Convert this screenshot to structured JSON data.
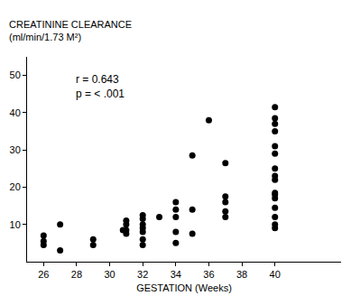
{
  "chart_data": {
    "type": "scatter",
    "y_label": [
      "CREATININE CLEARANCE",
      "(ml/min/1.73 M²)"
    ],
    "x_label": "GESTATION (Weeks)",
    "annotations": [
      "r = 0.643",
      "p = < .001"
    ],
    "color": "#000000",
    "marker": "circle",
    "grid": false,
    "x": [
      27,
      27,
      26,
      26,
      26,
      29,
      29,
      31,
      31,
      31,
      31,
      30.8,
      32,
      32,
      32,
      32,
      32,
      32,
      32,
      33,
      34,
      34,
      34,
      34,
      34,
      35,
      35,
      35,
      36,
      37,
      37,
      37,
      37,
      37,
      40,
      40,
      40,
      40,
      40,
      40,
      40,
      40,
      40,
      40,
      40,
      40,
      40,
      40,
      40,
      40
    ],
    "values": [
      10,
      3,
      7,
      5.5,
      4.5,
      6,
      4.5,
      11,
      10,
      8.5,
      7.5,
      8.5,
      12.5,
      11.5,
      10,
      9,
      8,
      6,
      4.5,
      12,
      16,
      14,
      12,
      8,
      5,
      28.5,
      14,
      7.5,
      38,
      26.5,
      17.5,
      16,
      13.5,
      12,
      41.5,
      38.5,
      37,
      35,
      31,
      29,
      25,
      23,
      22,
      18.5,
      18,
      17,
      14.5,
      12,
      10,
      9
    ],
    "xlim": [
      25,
      44
    ],
    "xticks": [
      26,
      28,
      30,
      32,
      34,
      36,
      38,
      40
    ],
    "ylim": [
      0,
      55
    ],
    "yticks": [
      10,
      20,
      30,
      40,
      50
    ]
  }
}
